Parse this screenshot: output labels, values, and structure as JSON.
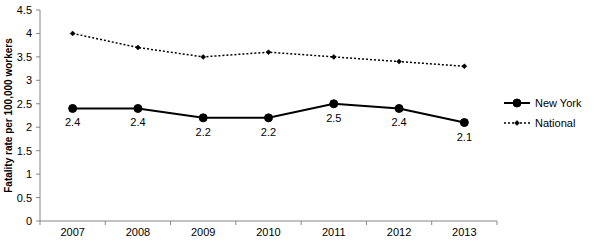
{
  "chart_data": {
    "type": "line",
    "y_label": "Fatality rate per 100,000 workers",
    "categories": [
      "2007",
      "2008",
      "2009",
      "2010",
      "2011",
      "2012",
      "2013"
    ],
    "series": [
      {
        "name": "New York",
        "color": "#000000",
        "marker": "circle",
        "line_style": "solid",
        "data_labels": true,
        "values": [
          2.4,
          2.4,
          2.2,
          2.2,
          2.5,
          2.4,
          2.1
        ]
      },
      {
        "name": "National",
        "color": "#000000",
        "marker": "diamond",
        "line_style": "dotted",
        "values": [
          4.0,
          3.7,
          3.5,
          3.6,
          3.5,
          3.4,
          3.3
        ]
      }
    ],
    "ylim": [
      0,
      4.5
    ],
    "yticks": [
      0,
      0.5,
      1,
      1.5,
      2,
      2.5,
      3,
      3.5,
      4,
      4.5
    ],
    "grid": false,
    "legend": "right"
  }
}
